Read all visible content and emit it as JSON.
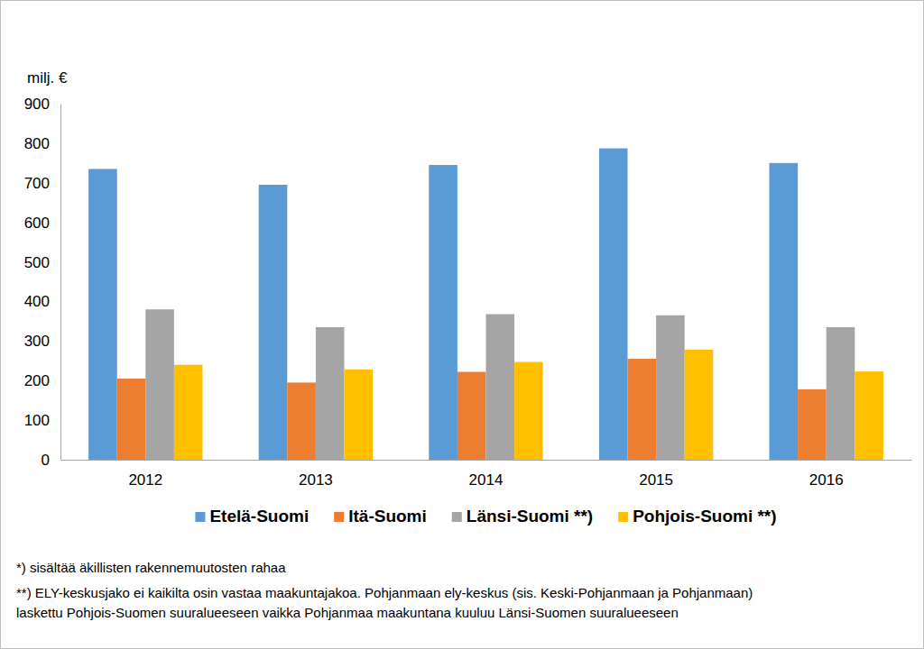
{
  "chart_data": {
    "type": "bar",
    "y_label": "milj. €",
    "categories": [
      "2012",
      "2013",
      "2014",
      "2015",
      "2016"
    ],
    "series": [
      {
        "name": "Etelä-Suomi",
        "color": "#5b9bd5",
        "values": [
          735,
          695,
          745,
          787,
          750
        ]
      },
      {
        "name": "Itä-Suomi",
        "color": "#ed7d31",
        "values": [
          205,
          195,
          222,
          255,
          178
        ]
      },
      {
        "name": "Länsi-Suomi  **)",
        "color": "#a5a5a5",
        "values": [
          380,
          335,
          368,
          365,
          335
        ]
      },
      {
        "name": "Pohjois-Suomi **)",
        "color": "#ffc000",
        "values": [
          240,
          228,
          247,
          278,
          223
        ]
      }
    ],
    "ylim": [
      0,
      900
    ],
    "yticks": [
      0,
      100,
      200,
      300,
      400,
      500,
      600,
      700,
      800,
      900
    ],
    "grid": false,
    "legend": "bottom",
    "annotations": [
      "*) sisältää äkillisten rakennemuutosten rahaa",
      "**) ELY-keskusjako ei kaikilta osin vastaa maakuntajakoa. Pohjanmaan ely-keskus (sis. Keski-Pohjanmaan ja Pohjanmaan)",
      "laskettu Pohjois-Suomen suuralueeseen vaikka Pohjanmaa maakuntana kuuluu Länsi-Suomen suuralueeseen"
    ]
  }
}
